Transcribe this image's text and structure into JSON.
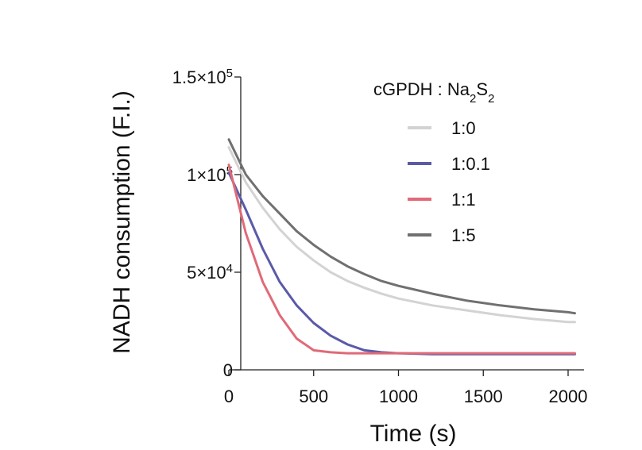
{
  "chart_data": {
    "type": "line",
    "xlabel": "Time (s)",
    "ylabel": "NADH consumption (F.I.)",
    "xlim": [
      0,
      2100
    ],
    "ylim": [
      0,
      150000
    ],
    "x_ticks": [
      {
        "value": 0,
        "label": "0"
      },
      {
        "value": 500,
        "label": "500"
      },
      {
        "value": 1000,
        "label": "1000"
      },
      {
        "value": 1500,
        "label": "1500"
      },
      {
        "value": 2000,
        "label": "2000"
      }
    ],
    "y_ticks": [
      {
        "value": 0,
        "label": "0",
        "exp": ""
      },
      {
        "value": 50000,
        "label": "5×10",
        "exp": "4"
      },
      {
        "value": 100000,
        "label": "1×10",
        "exp": "5"
      },
      {
        "value": 150000,
        "label": "1.5×10",
        "exp": "5"
      }
    ],
    "legend_title": {
      "prefix": "cGPDH : Na",
      "sub1": "2",
      "mid": "S",
      "sub2": "2"
    },
    "legend_position": "top-right",
    "x": [
      0,
      100,
      200,
      300,
      400,
      500,
      600,
      700,
      800,
      900,
      1000,
      1200,
      1400,
      1600,
      1800,
      2000,
      2040
    ],
    "series": [
      {
        "name": "1:0",
        "color": "#d3d3d3",
        "values": [
          114000,
          96000,
          83000,
          72000,
          63000,
          56000,
          50000,
          45500,
          42000,
          39000,
          36500,
          33000,
          30500,
          28000,
          26000,
          24500,
          24500
        ]
      },
      {
        "name": "1:0.1",
        "color": "#5a5aa8",
        "values": [
          101000,
          82000,
          62000,
          45000,
          33000,
          24000,
          17500,
          13000,
          10000,
          9000,
          8500,
          8000,
          8000,
          8000,
          8000,
          8000,
          8000
        ]
      },
      {
        "name": "1:1",
        "color": "#e06a78",
        "values": [
          105000,
          70000,
          45000,
          28000,
          16000,
          10000,
          9000,
          8500,
          8500,
          8500,
          8500,
          8500,
          8500,
          8500,
          8500,
          8500,
          8500
        ]
      },
      {
        "name": "1:5",
        "color": "#707070",
        "values": [
          118000,
          100000,
          89000,
          80000,
          71000,
          64000,
          58000,
          53000,
          49000,
          45500,
          43000,
          39000,
          35500,
          33000,
          31000,
          29500,
          29000
        ]
      }
    ]
  }
}
